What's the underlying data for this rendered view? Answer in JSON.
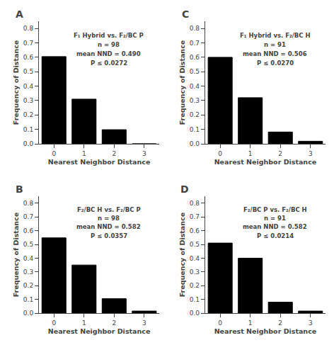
{
  "chart_data": [
    {
      "type": "bar",
      "title": "A",
      "annotations": [
        "F₁ Hybrid vs. F₂/BC P",
        "n = 98",
        "mean NND = 0.490",
        "P ≤ 0.0272"
      ],
      "x": [
        0,
        1,
        2,
        3
      ],
      "values": [
        0.605,
        0.31,
        0.098,
        0.0
      ],
      "color": "#000000",
      "xlim": [
        -0.5,
        3.5
      ],
      "ylim": [
        0,
        0.85
      ],
      "xticks": [
        0,
        1,
        2,
        3
      ],
      "yticks": [
        {
          "value": 0,
          "label": "0.0"
        },
        0.1,
        0.2,
        0.3,
        0.4,
        0.5,
        0.6,
        0.7,
        0.8
      ],
      "xlabel": "Nearest Neighbor Distance",
      "ylabel": "Frequency of Distance",
      "grid": false
    },
    {
      "type": "bar",
      "title": "C",
      "annotations": [
        "F₁ Hybrid vs. F₂/BC H",
        "n = 91",
        "mean NND = 0.506",
        "P ≤ 0.0270"
      ],
      "x": [
        0,
        1,
        2,
        3
      ],
      "values": [
        0.6,
        0.32,
        0.082,
        0.018
      ],
      "color": "#000000",
      "xlim": [
        -0.5,
        3.5
      ],
      "ylim": [
        0,
        0.85
      ],
      "xticks": [
        0,
        1,
        2,
        3
      ],
      "yticks": [
        {
          "value": 0,
          "label": "0.0"
        },
        0.1,
        0.2,
        0.3,
        0.4,
        0.5,
        0.6,
        0.7,
        0.8
      ],
      "xlabel": "Nearest Neighbor Distance",
      "ylabel": "Frequency of Distance",
      "grid": false
    },
    {
      "type": "bar",
      "title": "B",
      "annotations": [
        "F₂/BC H vs. F₂/BC P",
        "n = 98",
        "mean NND = 0.582",
        "P ≤ 0.0357"
      ],
      "x": [
        0,
        1,
        2,
        3
      ],
      "values": [
        0.548,
        0.35,
        0.105,
        0.015
      ],
      "color": "#000000",
      "xlim": [
        -0.5,
        3.5
      ],
      "ylim": [
        0,
        0.85
      ],
      "xticks": [
        0,
        1,
        2,
        3
      ],
      "yticks": [
        {
          "value": 0,
          "label": "0.0"
        },
        0.1,
        0.2,
        0.3,
        0.4,
        0.5,
        0.6,
        0.7,
        0.8
      ],
      "xlabel": "Nearest Neighbor Distance",
      "ylabel": "Frequency of Distance",
      "grid": false
    },
    {
      "type": "bar",
      "title": "D",
      "annotations": [
        "F₂/BC P vs. F₂/BC H",
        "n = 91",
        "mean NND = 0.582",
        "P ≤ 0.0214"
      ],
      "x": [
        0,
        1,
        2,
        3
      ],
      "values": [
        0.51,
        0.4,
        0.08,
        0.015
      ],
      "color": "#000000",
      "xlim": [
        -0.5,
        3.5
      ],
      "ylim": [
        0,
        0.85
      ],
      "xticks": [
        0,
        1,
        2,
        3
      ],
      "yticks": [
        {
          "value": 0,
          "label": "0.0"
        },
        0.1,
        0.2,
        0.3,
        0.4,
        0.5,
        0.6,
        0.7,
        0.8
      ],
      "xlabel": "Nearest Neighbor Distance",
      "ylabel": "Frequency of Distance",
      "grid": false
    }
  ]
}
